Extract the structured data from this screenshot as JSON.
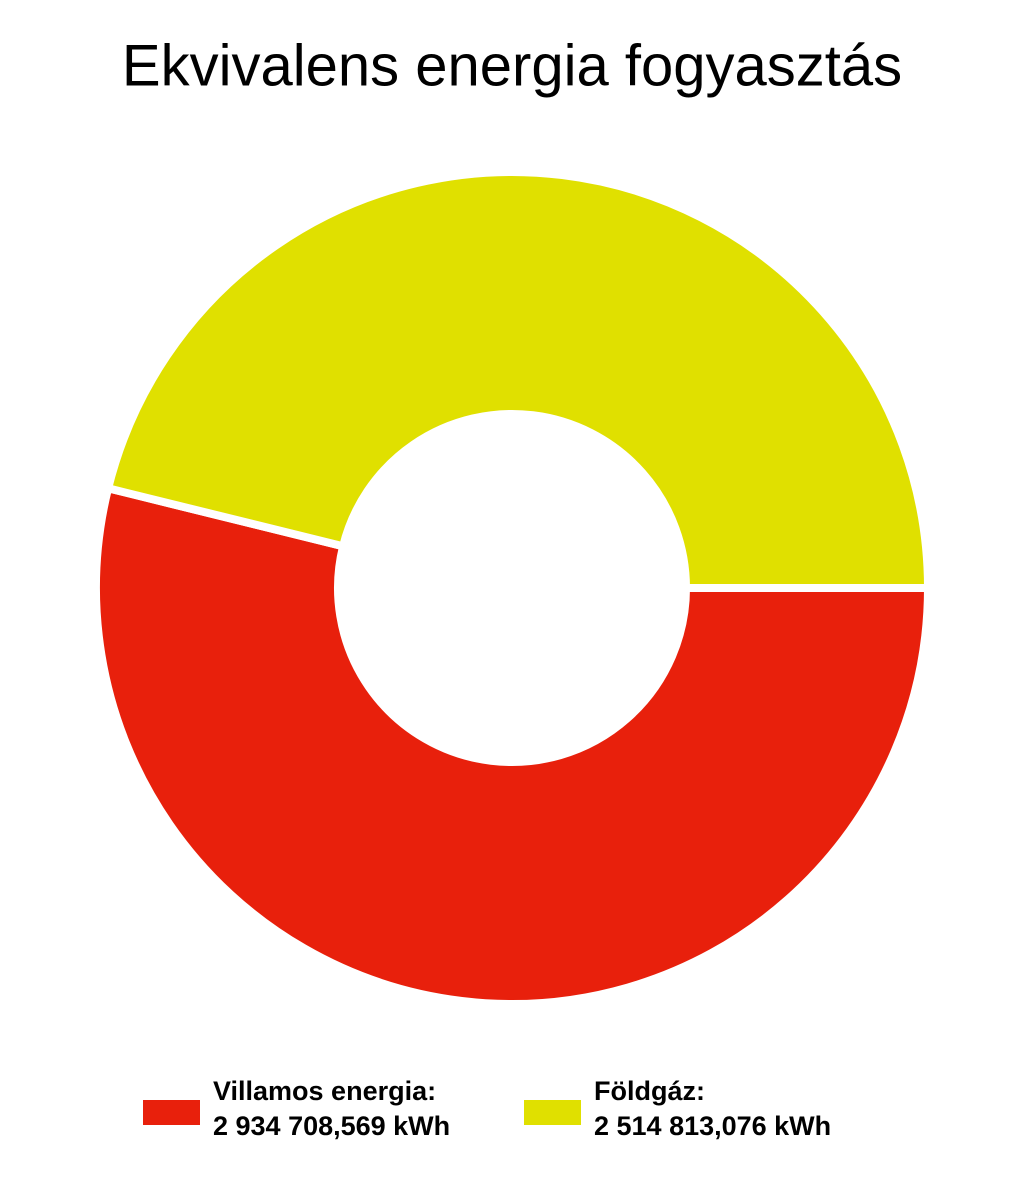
{
  "chart_data": {
    "type": "donut",
    "title": "Ekvivalens energia fogyasztás",
    "categories": [
      "Villamos energia:",
      "Földgáz:"
    ],
    "values": [
      2934708.569,
      2514813.076
    ],
    "value_labels": [
      "2 934 708,569 kWh",
      "2 514 813,076 kWh"
    ],
    "colors": [
      "#e8200c",
      "#e0e000"
    ],
    "legend": "bottom"
  }
}
